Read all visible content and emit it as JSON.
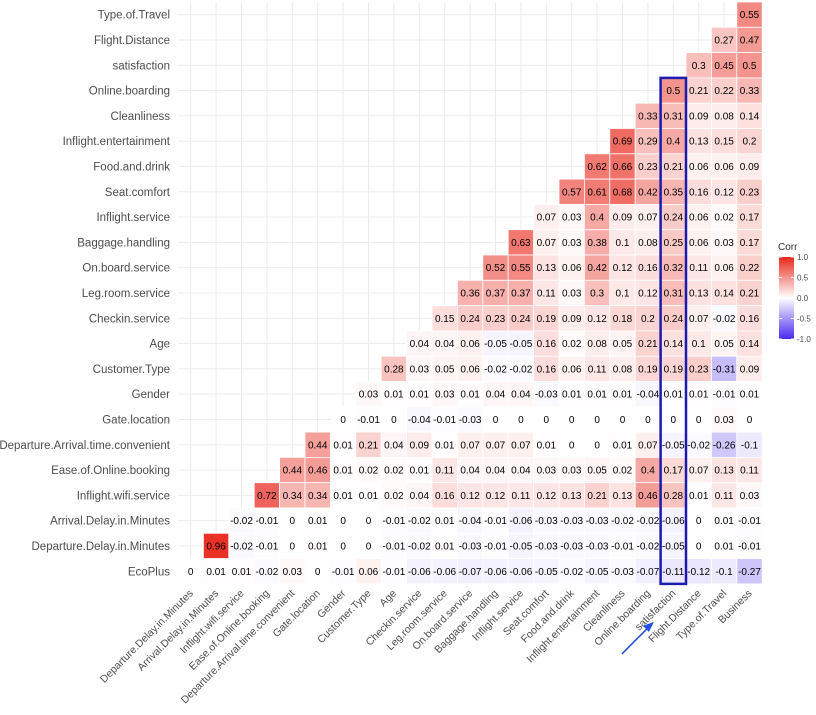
{
  "chart_data": {
    "type": "heatmap",
    "row_labels": [
      "Type.of.Travel",
      "Flight.Distance",
      "satisfaction",
      "Online.boarding",
      "Cleanliness",
      "Inflight.entertainment",
      "Food.and.drink",
      "Seat.comfort",
      "Inflight.service",
      "Baggage.handling",
      "On.board.service",
      "Leg.room.service",
      "Checkin.service",
      "Age",
      "Customer.Type",
      "Gender",
      "Gate.location",
      "Departure.Arrival.time.convenient",
      "Ease.of.Online.booking",
      "Inflight.wifi.service",
      "Arrival.Delay.in.Minutes",
      "Departure.Delay.in.Minutes",
      "EcoPlus"
    ],
    "col_labels": [
      "Departure.Delay.in.Minutes",
      "Arrival.Delay.in.Minutes",
      "Inflight.wifi.service",
      "Ease.of.Online.booking",
      "Departure.Arrival.time.convenient",
      "Gate.location",
      "Gender",
      "Customer.Type",
      "Age",
      "Checkin.service",
      "Leg.room.service",
      "On.board.service",
      "Baggage.handling",
      "Inflight.service",
      "Seat.comfort",
      "Food.and.drink",
      "Inflight.entertainment",
      "Cleanliness",
      "Online.boarding",
      "satisfaction",
      "Flight.Distance",
      "Type.of.Travel",
      "Business"
    ],
    "values": [
      [
        null,
        null,
        null,
        null,
        null,
        null,
        null,
        null,
        null,
        null,
        null,
        null,
        null,
        null,
        null,
        null,
        null,
        null,
        null,
        null,
        null,
        null,
        0.55
      ],
      [
        null,
        null,
        null,
        null,
        null,
        null,
        null,
        null,
        null,
        null,
        null,
        null,
        null,
        null,
        null,
        null,
        null,
        null,
        null,
        null,
        null,
        0.27,
        0.47
      ],
      [
        null,
        null,
        null,
        null,
        null,
        null,
        null,
        null,
        null,
        null,
        null,
        null,
        null,
        null,
        null,
        null,
        null,
        null,
        null,
        null,
        0.3,
        0.45,
        0.5
      ],
      [
        null,
        null,
        null,
        null,
        null,
        null,
        null,
        null,
        null,
        null,
        null,
        null,
        null,
        null,
        null,
        null,
        null,
        null,
        null,
        0.5,
        0.21,
        0.22,
        0.33
      ],
      [
        null,
        null,
        null,
        null,
        null,
        null,
        null,
        null,
        null,
        null,
        null,
        null,
        null,
        null,
        null,
        null,
        null,
        null,
        0.33,
        0.31,
        0.09,
        0.08,
        0.14
      ],
      [
        null,
        null,
        null,
        null,
        null,
        null,
        null,
        null,
        null,
        null,
        null,
        null,
        null,
        null,
        null,
        null,
        null,
        0.69,
        0.29,
        0.4,
        0.13,
        0.15,
        0.2
      ],
      [
        null,
        null,
        null,
        null,
        null,
        null,
        null,
        null,
        null,
        null,
        null,
        null,
        null,
        null,
        null,
        null,
        0.62,
        0.66,
        0.23,
        0.21,
        0.06,
        0.06,
        0.09
      ],
      [
        null,
        null,
        null,
        null,
        null,
        null,
        null,
        null,
        null,
        null,
        null,
        null,
        null,
        null,
        null,
        0.57,
        0.61,
        0.68,
        0.42,
        0.35,
        0.16,
        0.12,
        0.23
      ],
      [
        null,
        null,
        null,
        null,
        null,
        null,
        null,
        null,
        null,
        null,
        null,
        null,
        null,
        null,
        0.07,
        0.03,
        0.4,
        0.09,
        0.07,
        0.24,
        0.06,
        0.02,
        0.17
      ],
      [
        null,
        null,
        null,
        null,
        null,
        null,
        null,
        null,
        null,
        null,
        null,
        null,
        null,
        0.63,
        0.07,
        0.03,
        0.38,
        0.1,
        0.08,
        0.25,
        0.06,
        0.03,
        0.17
      ],
      [
        null,
        null,
        null,
        null,
        null,
        null,
        null,
        null,
        null,
        null,
        null,
        null,
        0.52,
        0.55,
        0.13,
        0.06,
        0.42,
        0.12,
        0.16,
        0.32,
        0.11,
        0.06,
        0.22
      ],
      [
        null,
        null,
        null,
        null,
        null,
        null,
        null,
        null,
        null,
        null,
        null,
        0.36,
        0.37,
        0.37,
        0.11,
        0.03,
        0.3,
        0.1,
        0.12,
        0.31,
        0.13,
        0.14,
        0.21
      ],
      [
        null,
        null,
        null,
        null,
        null,
        null,
        null,
        null,
        null,
        null,
        0.15,
        0.24,
        0.23,
        0.24,
        0.19,
        0.09,
        0.12,
        0.18,
        0.2,
        0.24,
        0.07,
        -0.02,
        0.16
      ],
      [
        null,
        null,
        null,
        null,
        null,
        null,
        null,
        null,
        null,
        0.04,
        0.04,
        0.06,
        -0.05,
        -0.05,
        0.16,
        0.02,
        0.08,
        0.05,
        0.21,
        0.14,
        0.1,
        0.05,
        0.14
      ],
      [
        null,
        null,
        null,
        null,
        null,
        null,
        null,
        null,
        0.28,
        0.03,
        0.05,
        0.06,
        -0.02,
        -0.02,
        0.16,
        0.06,
        0.11,
        0.08,
        0.19,
        0.19,
        0.23,
        -0.31,
        0.09
      ],
      [
        null,
        null,
        null,
        null,
        null,
        null,
        null,
        0.03,
        0.01,
        0.01,
        0.03,
        0.01,
        0.04,
        0.04,
        -0.03,
        0.01,
        0.01,
        0.01,
        -0.04,
        0.01,
        0.01,
        -0.01,
        0.01
      ],
      [
        null,
        null,
        null,
        null,
        null,
        null,
        0,
        -0.01,
        0,
        -0.04,
        -0.01,
        -0.03,
        0,
        0,
        0,
        0,
        0,
        0,
        0,
        0,
        0,
        0.03,
        0
      ],
      [
        null,
        null,
        null,
        null,
        null,
        0.44,
        0.01,
        0.21,
        0.04,
        0.09,
        0.01,
        0.07,
        0.07,
        0.07,
        0.01,
        0,
        0,
        0.01,
        0.07,
        -0.05,
        -0.02,
        -0.26,
        -0.1
      ],
      [
        null,
        null,
        null,
        null,
        0.44,
        0.46,
        0.01,
        0.02,
        0.02,
        0.01,
        0.11,
        0.04,
        0.04,
        0.04,
        0.03,
        0.03,
        0.05,
        0.02,
        0.4,
        0.17,
        0.07,
        0.13,
        0.11
      ],
      [
        null,
        null,
        null,
        0.72,
        0.34,
        0.34,
        0.01,
        0.01,
        0.02,
        0.04,
        0.16,
        0.12,
        0.12,
        0.11,
        0.12,
        0.13,
        0.21,
        0.13,
        0.46,
        0.28,
        0.01,
        0.11,
        0.03
      ],
      [
        null,
        null,
        -0.02,
        -0.01,
        0,
        0.01,
        0,
        0,
        -0.01,
        -0.02,
        0.01,
        -0.04,
        -0.01,
        -0.06,
        -0.03,
        -0.03,
        -0.03,
        -0.02,
        -0.02,
        -0.06,
        0,
        0.01,
        -0.01
      ],
      [
        null,
        0.96,
        -0.02,
        -0.01,
        0,
        0.01,
        0,
        0,
        -0.01,
        -0.02,
        0.01,
        -0.03,
        -0.01,
        -0.05,
        -0.03,
        -0.03,
        -0.03,
        -0.01,
        -0.02,
        -0.05,
        0,
        0.01,
        -0.01
      ],
      [
        0,
        0.01,
        0.01,
        -0.02,
        0.03,
        0,
        -0.01,
        0.06,
        -0.01,
        -0.06,
        -0.06,
        -0.07,
        -0.06,
        -0.06,
        -0.05,
        -0.02,
        -0.05,
        -0.03,
        -0.07,
        -0.11,
        -0.12,
        -0.1,
        -0.27
      ]
    ],
    "legend": {
      "title": "Corr",
      "ticks": [
        1.0,
        0.5,
        0.0,
        -0.5,
        -1.0
      ],
      "tick_labels": [
        "1.0",
        "0.5",
        "0.0",
        "-0.5",
        "-1.0"
      ],
      "placement": "right"
    },
    "scale": {
      "min": -1,
      "max": 1,
      "low_color": "#4a2bf0",
      "mid_color": "#ffffff",
      "high_color": "#e8281c"
    },
    "highlight": {
      "column": "satisfaction",
      "color": "#1b1bb0"
    },
    "arrow_target": "Online.boarding",
    "grid": true
  }
}
